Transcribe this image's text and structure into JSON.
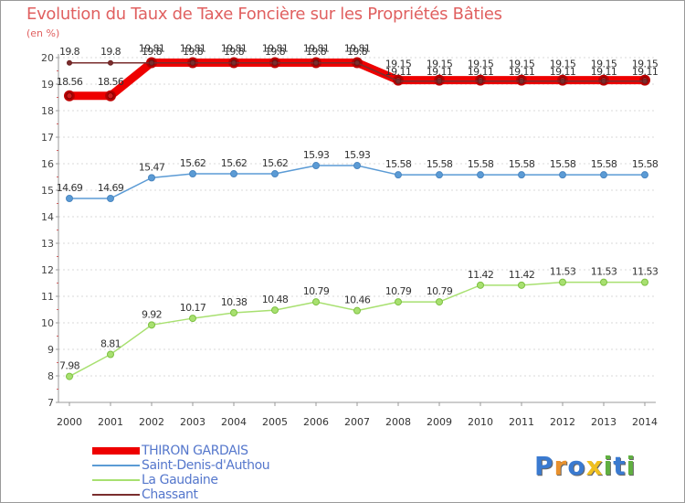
{
  "title": "Evolution du Taux de Taxe Foncière sur les Propriétés Bâties",
  "subtitle": "(en %)",
  "logo": {
    "letters": [
      "P",
      "r",
      "o",
      "x",
      "i",
      "t",
      "i"
    ],
    "colors": [
      "#3a7ad0",
      "#e8912e",
      "#3a7ad0",
      "#f0c020",
      "#60b040",
      "#3a7ad0",
      "#60b040"
    ]
  },
  "chart_data": {
    "type": "line",
    "title": "Evolution du Taux de Taxe Foncière sur les Propriétés Bâties",
    "ylabel": "(en %)",
    "xlabel": "",
    "ylim": [
      7,
      20
    ],
    "yticks": [
      7,
      8,
      9,
      10,
      11,
      12,
      13,
      14,
      15,
      16,
      17,
      18,
      19,
      20
    ],
    "x": [
      "2000",
      "2001",
      "2002",
      "2003",
      "2004",
      "2005",
      "2006",
      "2007",
      "2008",
      "2009",
      "2010",
      "2011",
      "2012",
      "2013",
      "2014"
    ],
    "series": [
      {
        "name": "THIRON GARDAIS",
        "color": "#ee0000",
        "width": 9,
        "marker": "#c00000",
        "values": [
          18.56,
          18.56,
          19.81,
          19.81,
          19.81,
          19.81,
          19.81,
          19.81,
          19.15,
          19.15,
          19.15,
          19.15,
          19.15,
          19.15,
          19.15
        ],
        "labels": [
          "18.56",
          "18.56",
          "19.81",
          "19.81",
          "19.81",
          "19.81",
          "19.81",
          "19.81",
          "19.15",
          "19.15",
          "19.15",
          "19.15",
          "19.15",
          "19.15",
          "19.15"
        ]
      },
      {
        "name": "Saint-Denis-d'Authou",
        "color": "#5b9bd5",
        "width": 1.5,
        "marker": "#4a86c0",
        "values": [
          14.69,
          14.69,
          15.47,
          15.62,
          15.62,
          15.62,
          15.93,
          15.93,
          15.58,
          15.58,
          15.58,
          15.58,
          15.58,
          15.58,
          15.58
        ],
        "labels": [
          "14.69",
          "14.69",
          "15.47",
          "15.62",
          "15.62",
          "15.62",
          "15.93",
          "15.93",
          "15.58",
          "15.58",
          "15.58",
          "15.58",
          "15.58",
          "15.58",
          "15.58"
        ]
      },
      {
        "name": "La Gaudaine",
        "color": "#a8e070",
        "width": 1.5,
        "marker": "#7cc040",
        "values": [
          7.98,
          8.81,
          9.92,
          10.17,
          10.38,
          10.48,
          10.79,
          10.46,
          10.79,
          10.79,
          11.42,
          11.42,
          11.53,
          11.53,
          11.53
        ],
        "labels": [
          "7.98",
          "8.81",
          "9.92",
          "10.17",
          "10.38",
          "10.48",
          "10.79",
          "10.46",
          "10.79",
          "10.79",
          "11.42",
          "11.42",
          "11.53",
          "11.53",
          "11.53"
        ]
      },
      {
        "name": "Chassant",
        "color": "#7a2e2e",
        "width": 1.5,
        "marker": "#6a2020",
        "values": [
          19.8,
          19.8,
          19.8,
          19.8,
          19.8,
          19.8,
          19.8,
          19.8,
          19.11,
          19.11,
          19.11,
          19.11,
          19.11,
          19.11,
          19.11
        ],
        "labels": [
          "19.8",
          "19.8",
          "19.8",
          "19.8",
          "19.8",
          "19.8",
          "19.8",
          "19.8",
          "19.11",
          "19.11",
          "19.11",
          "19.11",
          "19.11",
          "19.11",
          "19.11"
        ]
      }
    ]
  }
}
